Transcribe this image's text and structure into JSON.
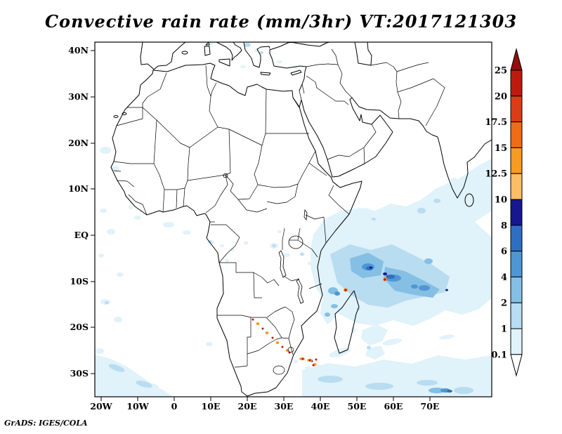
{
  "title": "Convective rain rate (mm/3hr) VT:2017121303",
  "credit": "GrADS: IGES/COLA",
  "axes": {
    "y_labels": [
      "40N",
      "30N",
      "20N",
      "10N",
      "EQ",
      "10S",
      "20S",
      "30S"
    ],
    "x_labels": [
      "20W",
      "10W",
      "0",
      "10E",
      "20E",
      "30E",
      "40E",
      "50E",
      "60E",
      "70E"
    ]
  },
  "legend": {
    "labels_top_to_bottom": [
      "25",
      "20",
      "17.5",
      "15",
      "12.5",
      "10",
      "8",
      "6",
      "4",
      "2",
      "1",
      "0.1"
    ],
    "cell_colors_top_to_bottom": [
      "#bd1a10",
      "#dc3d18",
      "#ef6c17",
      "#f79b23",
      "#fbbd66",
      "#16188c",
      "#2f6fc1",
      "#4f97d4",
      "#85bfe4",
      "#b8dcf0",
      "#e0f2fa"
    ],
    "top_arrow_color": "#930e0e",
    "bottom_arrow_color": "#ffffff"
  },
  "chart_data": {
    "type": "heatmap",
    "title": "Convective rain rate (mm/3hr) VT:2017121303",
    "variable": "Convective rain rate",
    "units": "mm/3hr",
    "valid_time_label": "VT:2017121303",
    "x_tick_labels": [
      "20W",
      "10W",
      "0",
      "10E",
      "20E",
      "30E",
      "40E",
      "50E",
      "60E",
      "70E"
    ],
    "y_tick_labels": [
      "40N",
      "30N",
      "20N",
      "10N",
      "EQ",
      "10S",
      "20S",
      "30S"
    ],
    "lon_range_deg": [
      -22,
      87
    ],
    "lat_range_deg": [
      -35,
      42
    ],
    "contour_levels": [
      0.1,
      1,
      2,
      4,
      6,
      8,
      10,
      12.5,
      15,
      17.5,
      20,
      25
    ],
    "colors_low_to_high": [
      "#ffffff",
      "#e0f2fa",
      "#b8dcf0",
      "#85bfe4",
      "#4f97d4",
      "#2f6fc1",
      "#16188c",
      "#fbbd66",
      "#f79b23",
      "#ef6c17",
      "#dc3d18",
      "#bd1a10",
      "#930e0e"
    ],
    "grid": false,
    "legend_position": "right",
    "base_map": "Africa, Madagascar, Middle East, southern Europe coastlines with country borders",
    "features": [
      {
        "region": "SW Indian Ocean (45E-75E, 0S-20S)",
        "rain_mm_3hr": "widespread 1-10, cores 4-10, isolated >20 cell near 57E 9S"
      },
      {
        "region": "Mozambique Channel near NW Madagascar (47E 13S)",
        "rain_mm_3hr": "isolated >20 convective cell"
      },
      {
        "region": "Southern Africa interior Botswana-Limpopo (20E-30E, 20S-27S)",
        "rain_mm_3hr": "diagonal line of isolated 15-25 cells"
      },
      {
        "region": "South Africa east coast (26E-31E, ~30S)",
        "rain_mm_3hr": "cluster of 10-25 cells"
      },
      {
        "region": "Tropical Atlantic / Gulf of Guinea",
        "rain_mm_3hr": "scattered 0.1-2 specks"
      },
      {
        "region": "Southern Ocean storm track south of 30S",
        "rain_mm_3hr": "banded 0.1-6, stronger streak near 60E 33S"
      },
      {
        "region": "Mediterranean near Italy, Greece, Turkey",
        "rain_mm_3hr": "0.1-2 small specks"
      },
      {
        "region": "Congo Basin and East African lakes",
        "rain_mm_3hr": "scattered 0.1-4"
      },
      {
        "region": "Arabian Sea near S India / Sri Lanka",
        "rain_mm_3hr": "0.1-2 specks"
      }
    ]
  }
}
